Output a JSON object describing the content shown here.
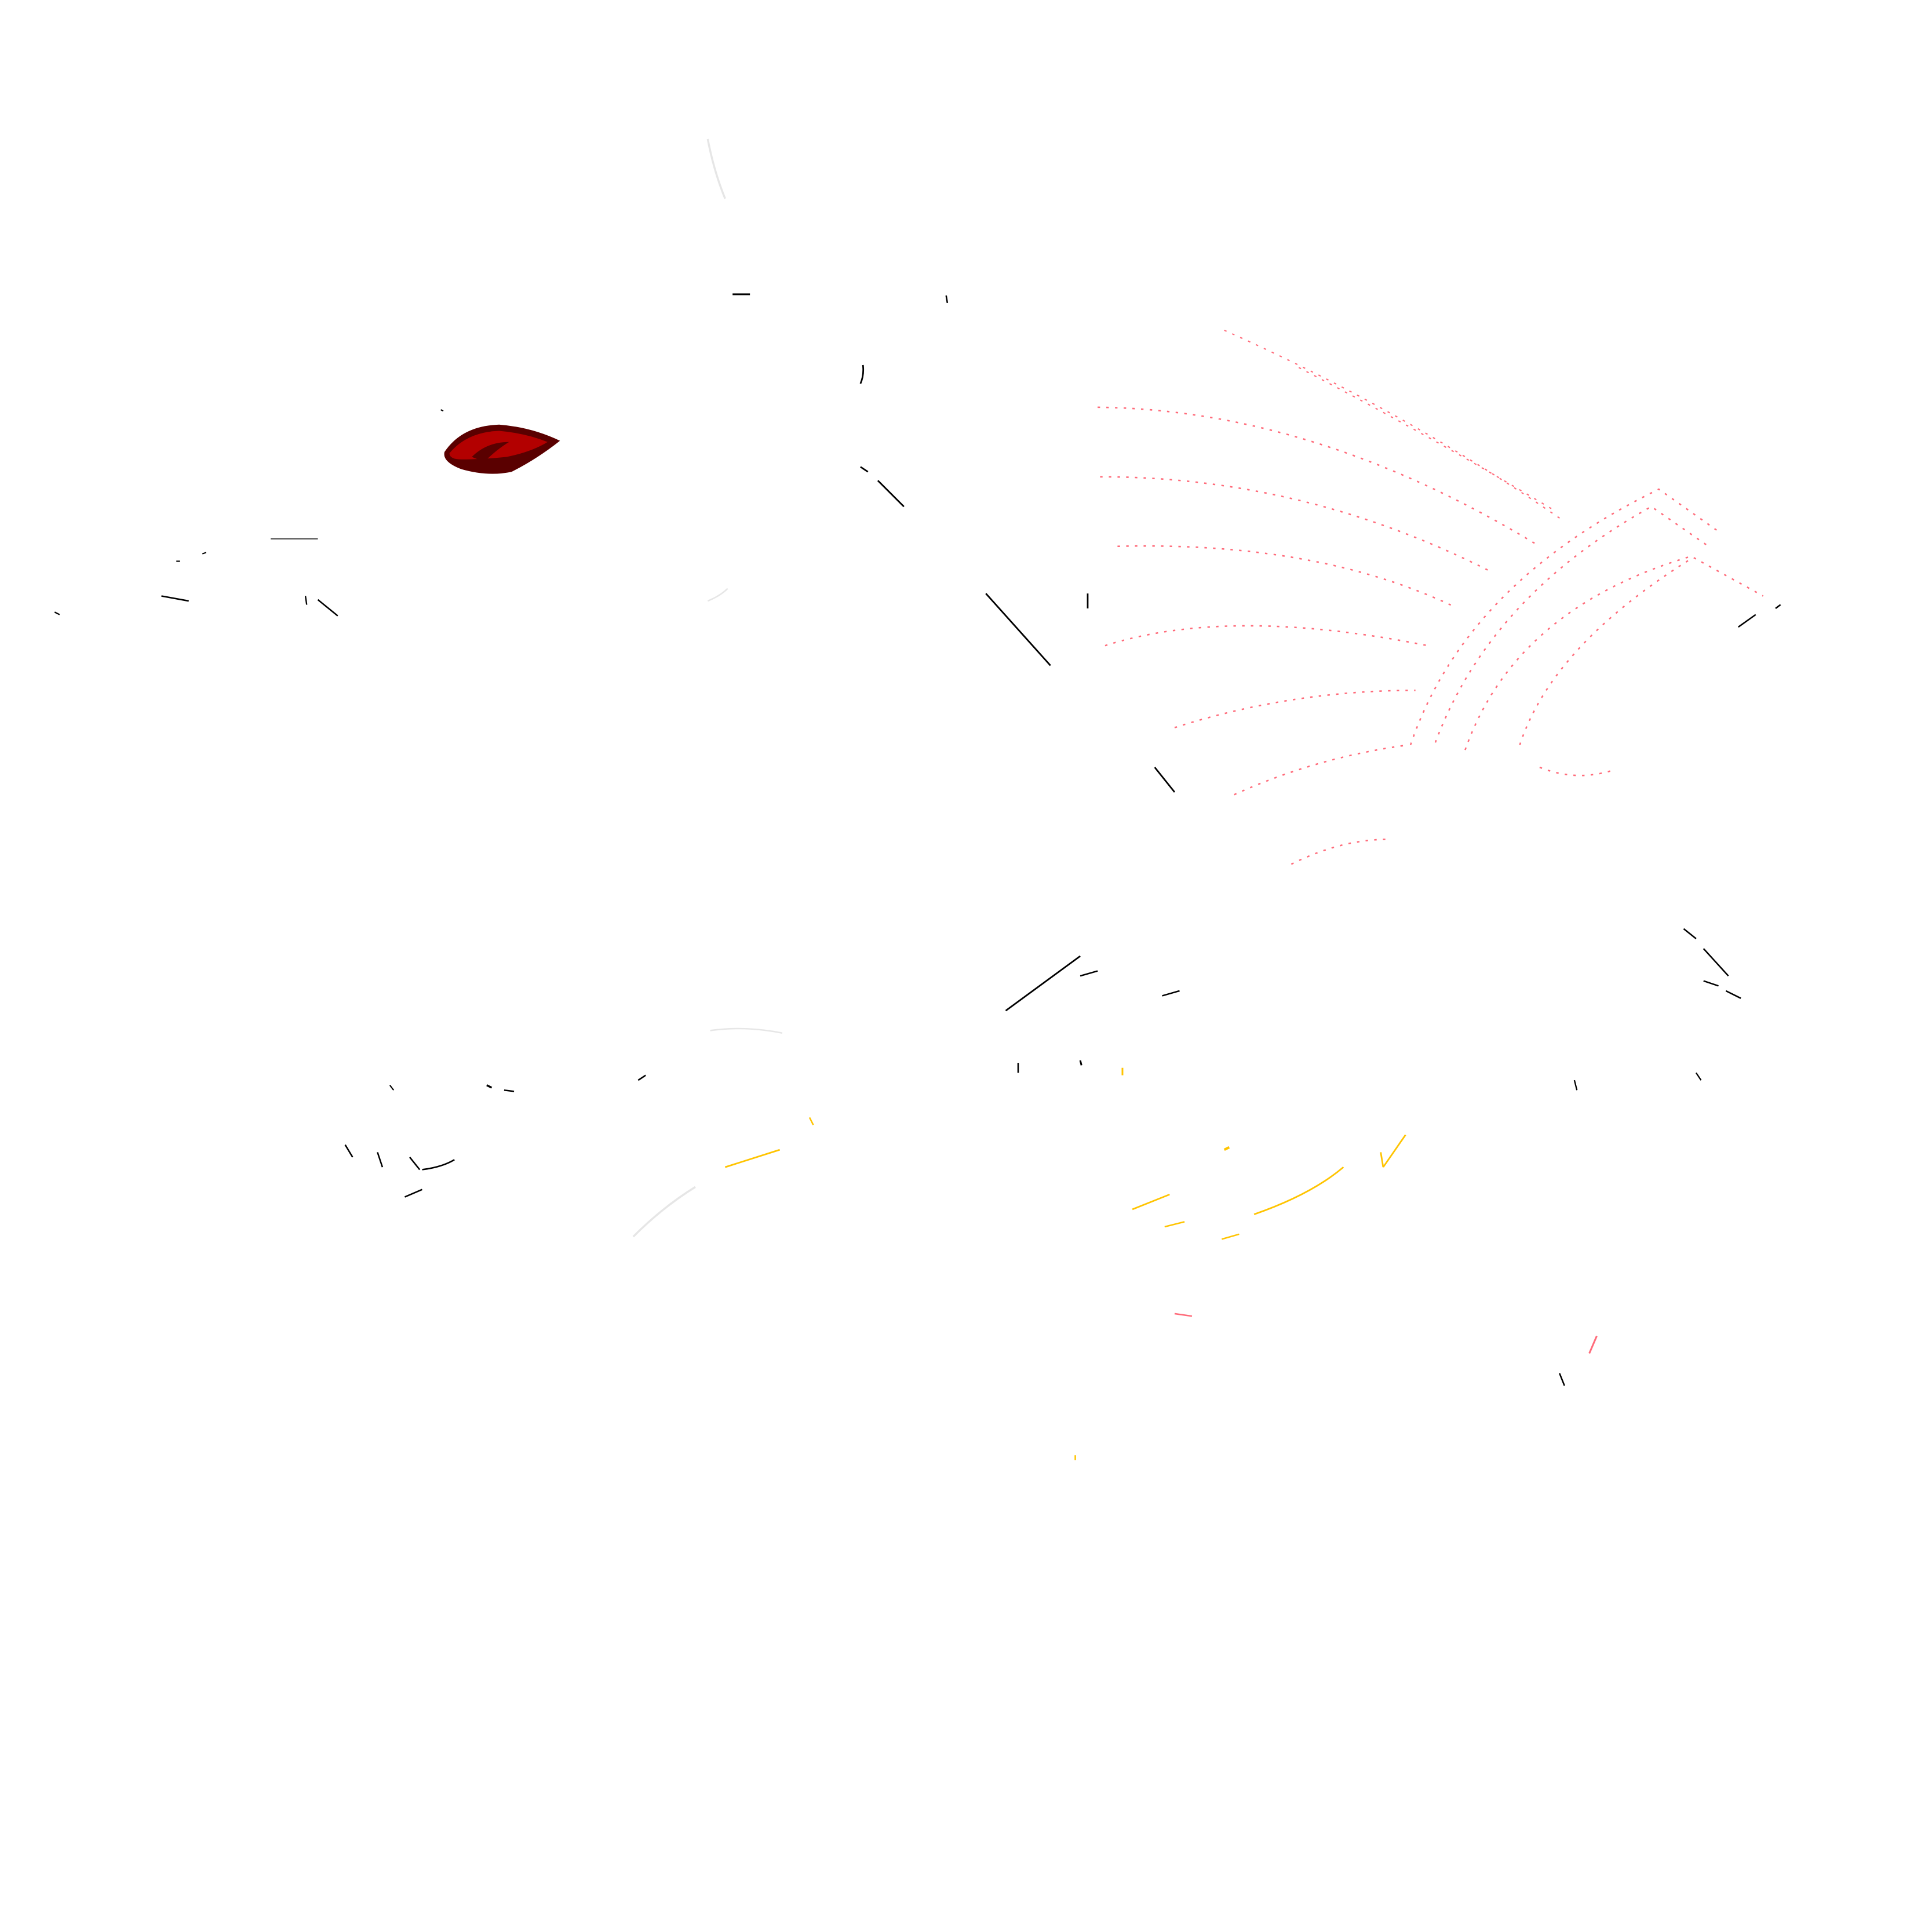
{
  "artwork": {
    "subject": "dragon-line-art",
    "background_color": "#ffffff",
    "line_color": "#000000",
    "eye_color": "#b30000",
    "eye_shadow_color": "#5a0000",
    "wing_line_color": "#ff6b7a",
    "accent_line_color": "#ffc400",
    "faint_line_color": "#e6e6e6"
  }
}
